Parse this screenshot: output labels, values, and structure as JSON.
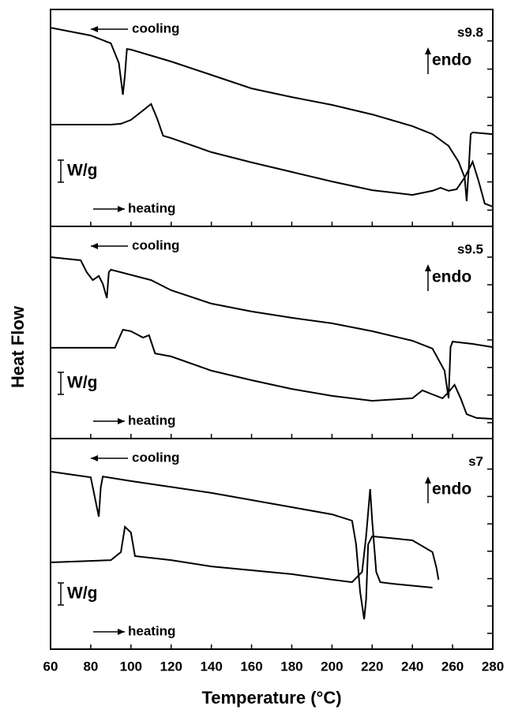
{
  "figure": {
    "xlabel": "Temperature (°C)",
    "ylabel": "Heat Flow"
  },
  "chart_data": [
    {
      "type": "line",
      "label": "s9.8",
      "annotation": "endo",
      "scale_label": "W/g",
      "xlim": [
        60,
        280
      ],
      "xticks": [
        60,
        80,
        100,
        120,
        140,
        160,
        180,
        200,
        220,
        240,
        260,
        280
      ],
      "ylim": [
        0,
        10
      ],
      "yticks": [
        0.75,
        2.05,
        3.35,
        4.65,
        5.95,
        7.25,
        8.55
      ],
      "series": [
        {
          "name": "cooling",
          "color": "#000000",
          "x": [
            60,
            80,
            90,
            94,
            96,
            97,
            98,
            100,
            120,
            140,
            160,
            180,
            200,
            220,
            240,
            250,
            258,
            263,
            266,
            267,
            268,
            269,
            270,
            280
          ],
          "values": [
            9.16,
            8.8,
            8.44,
            7.53,
            6.07,
            6.98,
            8.18,
            8.15,
            7.6,
            6.98,
            6.36,
            5.96,
            5.6,
            5.16,
            4.62,
            4.25,
            3.71,
            2.98,
            2.25,
            1.16,
            2.62,
            4.25,
            4.33,
            4.25
          ]
        },
        {
          "name": "heating",
          "color": "#000000",
          "x": [
            60,
            90,
            95,
            97,
            100,
            105,
            110,
            113,
            116,
            120,
            140,
            160,
            180,
            200,
            220,
            240,
            250,
            254,
            258,
            262,
            266,
            270,
            273,
            276,
            280
          ],
          "values": [
            4.69,
            4.69,
            4.73,
            4.8,
            4.91,
            5.27,
            5.64,
            4.98,
            4.18,
            4.07,
            3.42,
            2.95,
            2.51,
            2.07,
            1.67,
            1.45,
            1.64,
            1.78,
            1.64,
            1.71,
            2.25,
            2.98,
            2.07,
            1.05,
            0.91
          ]
        }
      ]
    },
    {
      "type": "line",
      "label": "s9.5",
      "annotation": "endo",
      "scale_label": "W/g",
      "xlim": [
        60,
        280
      ],
      "xticks": [
        60,
        80,
        100,
        120,
        140,
        160,
        180,
        200,
        220,
        240,
        260,
        280
      ],
      "ylim": [
        0,
        10
      ],
      "yticks": [
        0.75,
        2.05,
        3.35,
        4.65,
        5.95,
        7.25,
        8.55
      ],
      "series": [
        {
          "name": "cooling",
          "color": "#000000",
          "x": [
            60,
            75,
            78,
            81,
            84,
            86,
            88,
            89,
            90,
            110,
            120,
            140,
            160,
            180,
            200,
            220,
            240,
            250,
            256,
            258,
            259,
            260,
            270,
            280
          ],
          "values": [
            8.55,
            8.4,
            7.84,
            7.47,
            7.66,
            7.29,
            6.62,
            7.84,
            7.96,
            7.47,
            6.99,
            6.36,
            5.99,
            5.69,
            5.43,
            5.06,
            4.61,
            4.24,
            3.2,
            1.9,
            4.31,
            4.57,
            4.46,
            4.31
          ]
        },
        {
          "name": "heating",
          "color": "#000000",
          "x": [
            60,
            92,
            96,
            100,
            106,
            109,
            112,
            120,
            140,
            160,
            180,
            200,
            220,
            240,
            245,
            250,
            255,
            258,
            261,
            264,
            267,
            272,
            280
          ],
          "values": [
            4.28,
            4.28,
            5.13,
            5.06,
            4.76,
            4.87,
            4.01,
            3.87,
            3.2,
            2.75,
            2.34,
            2.01,
            1.78,
            1.9,
            2.27,
            2.08,
            1.9,
            2.19,
            2.53,
            1.9,
            1.15,
            0.97,
            0.93
          ]
        }
      ]
    },
    {
      "type": "line",
      "label": "s7",
      "annotation": "endo",
      "scale_label": "W/g",
      "xlim": [
        60,
        280
      ],
      "xticks": [
        60,
        80,
        100,
        120,
        140,
        160,
        180,
        200,
        220,
        240,
        260,
        280
      ],
      "xtick_labels_shown": true,
      "ylim": [
        0,
        10
      ],
      "yticks": [
        0.75,
        2.05,
        3.35,
        4.65,
        5.95,
        7.25,
        8.55
      ],
      "series": [
        {
          "name": "cooling",
          "color": "#000000",
          "x": [
            60,
            80,
            82,
            84,
            85,
            86,
            100,
            140,
            180,
            200,
            210,
            212,
            214,
            216,
            217,
            218,
            220,
            240,
            250,
            252,
            253
          ],
          "values": [
            8.43,
            8.16,
            7.23,
            6.29,
            7.68,
            8.2,
            7.98,
            7.42,
            6.74,
            6.4,
            6.1,
            4.98,
            2.73,
            1.42,
            2.36,
            4.98,
            5.36,
            5.17,
            4.61,
            3.86,
            3.3
          ]
        },
        {
          "name": "heating",
          "color": "#000000",
          "x": [
            60,
            90,
            95,
            97,
            100,
            102,
            120,
            140,
            180,
            200,
            210,
            215,
            217,
            219,
            220,
            222,
            224,
            230,
            250
          ],
          "values": [
            4.12,
            4.23,
            4.61,
            5.81,
            5.54,
            4.42,
            4.23,
            3.93,
            3.56,
            3.3,
            3.18,
            3.67,
            5.36,
            7.6,
            6.1,
            3.67,
            3.18,
            3.11,
            2.92
          ]
        }
      ]
    }
  ]
}
